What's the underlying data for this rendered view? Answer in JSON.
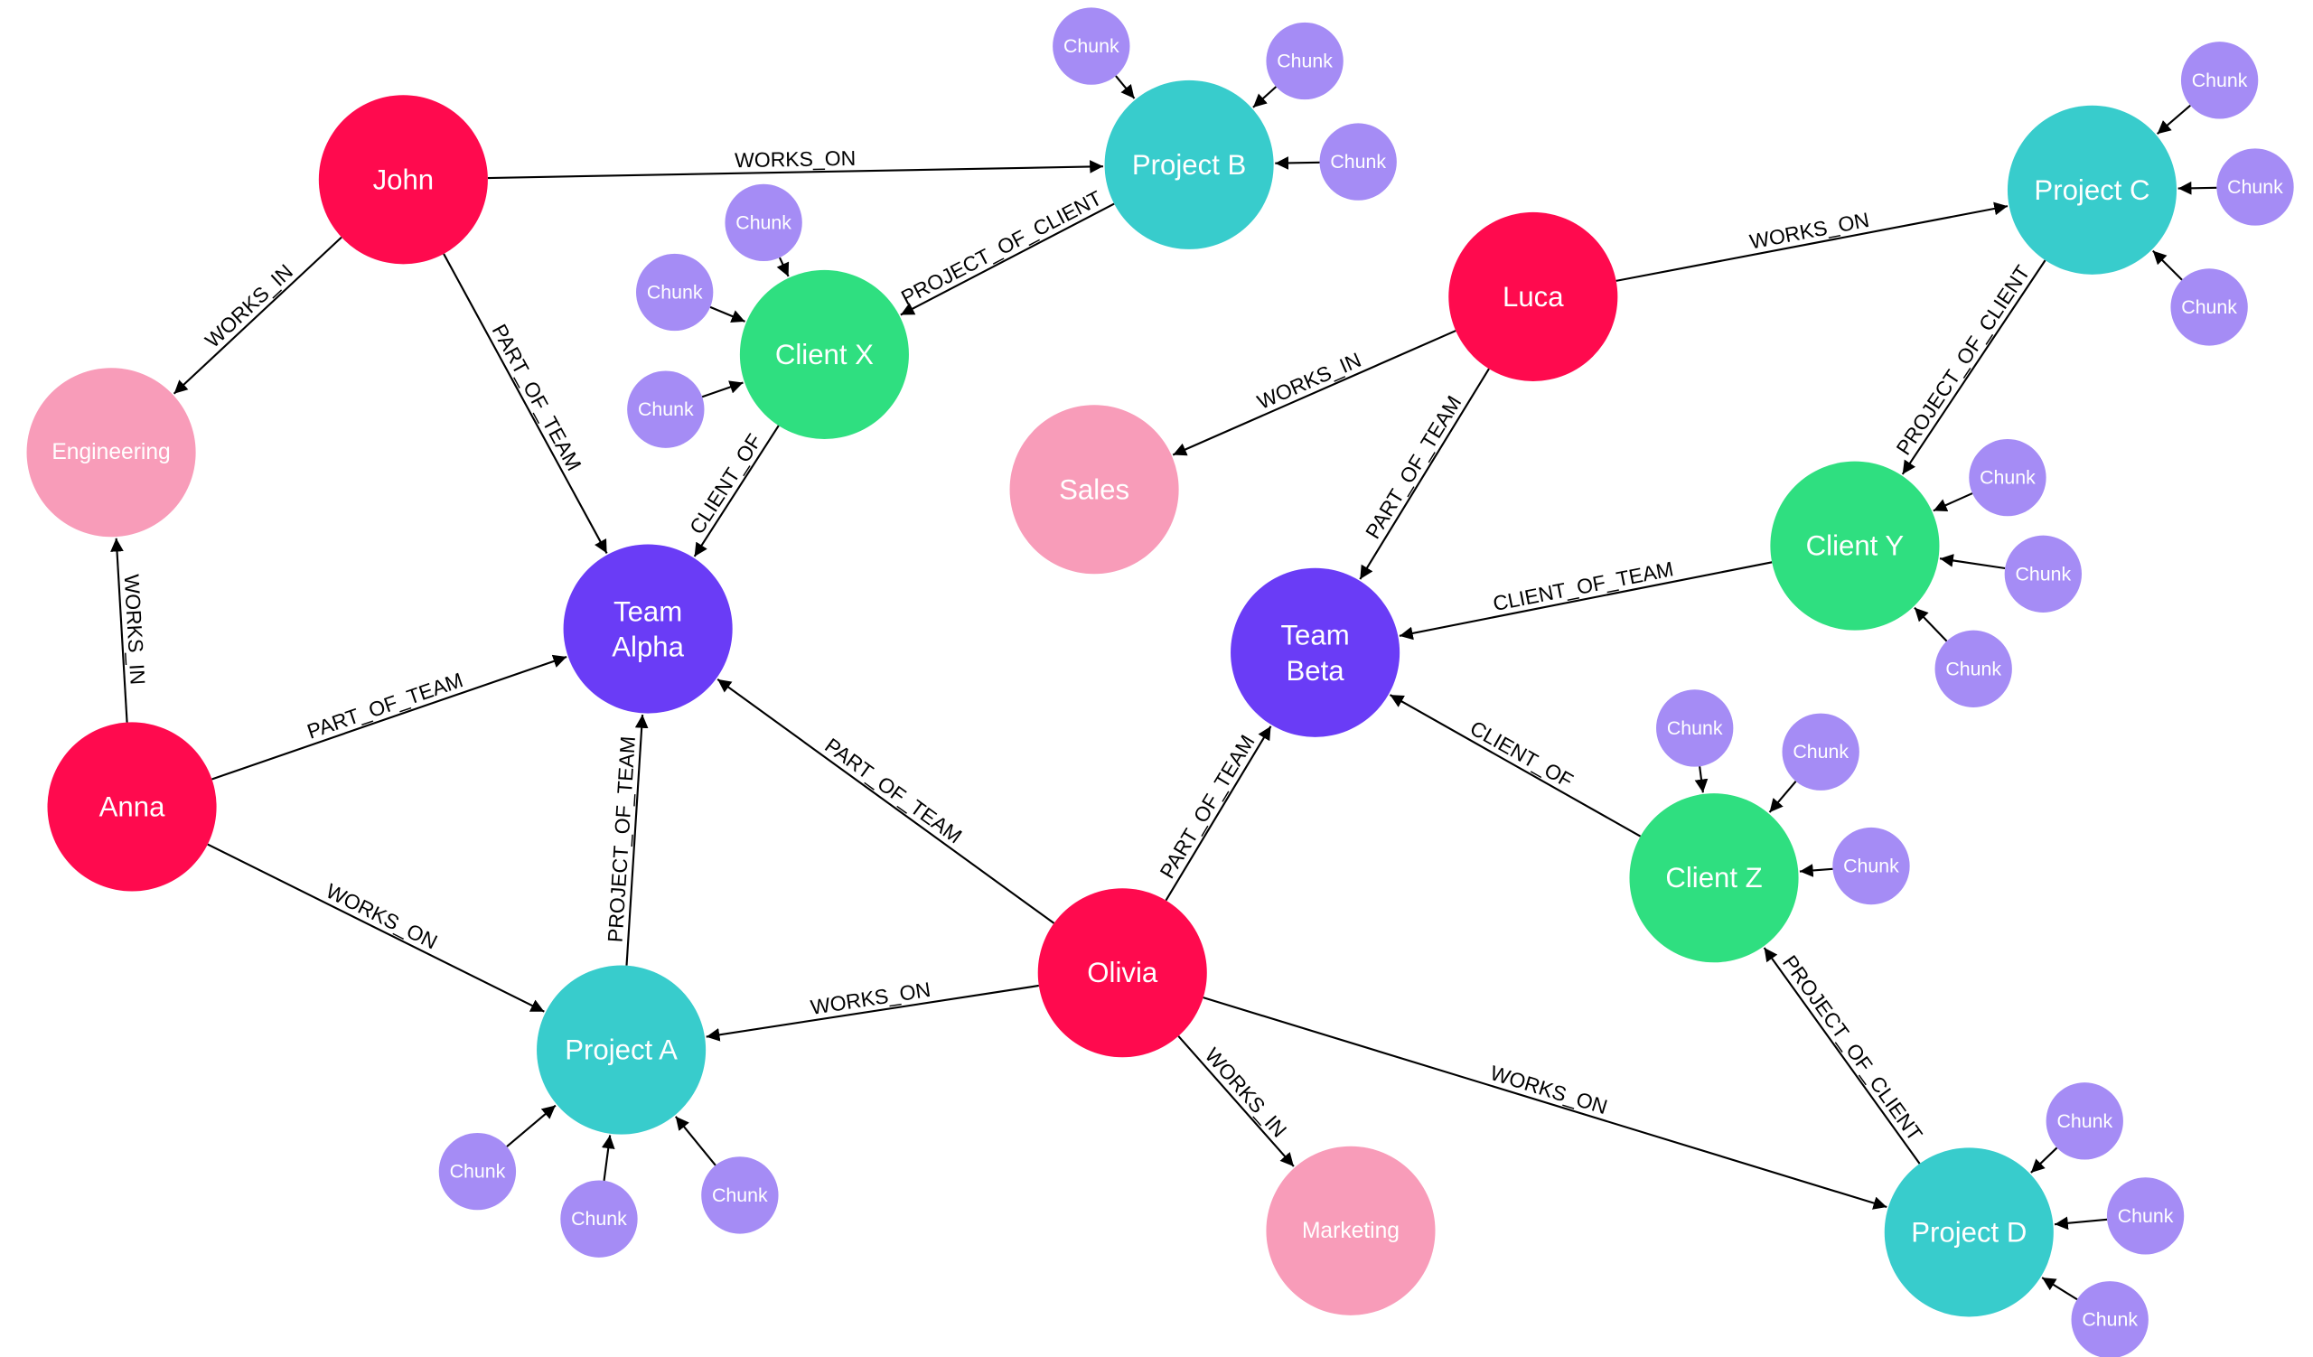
{
  "colors": {
    "Person": "#FF0A4E",
    "Department": "#F89CB9",
    "Team": "#6A3CF6",
    "Project": "#38CCCC",
    "Client": "#2FDF80",
    "Chunk": "#A58CF5",
    "edge": "#000000"
  },
  "nodes": [
    {
      "id": "john",
      "label": "John",
      "type": "Person"
    },
    {
      "id": "anna",
      "label": "Anna",
      "type": "Person"
    },
    {
      "id": "olivia",
      "label": "Olivia",
      "type": "Person"
    },
    {
      "id": "luca",
      "label": "Luca",
      "type": "Person"
    },
    {
      "id": "engineering",
      "label": "Engineering",
      "type": "Department"
    },
    {
      "id": "sales",
      "label": "Sales",
      "type": "Department"
    },
    {
      "id": "marketing",
      "label": "Marketing",
      "type": "Department"
    },
    {
      "id": "team_alpha",
      "label": "Team\nAlpha",
      "type": "Team"
    },
    {
      "id": "team_beta",
      "label": "Team\nBeta",
      "type": "Team"
    },
    {
      "id": "project_a",
      "label": "Project A",
      "type": "Project"
    },
    {
      "id": "project_b",
      "label": "Project B",
      "type": "Project"
    },
    {
      "id": "project_c",
      "label": "Project C",
      "type": "Project"
    },
    {
      "id": "project_d",
      "label": "Project D",
      "type": "Project"
    },
    {
      "id": "client_x",
      "label": "Client X",
      "type": "Client"
    },
    {
      "id": "client_y",
      "label": "Client Y",
      "type": "Client"
    },
    {
      "id": "client_z",
      "label": "Client Z",
      "type": "Client"
    },
    {
      "id": "pb1",
      "label": "Chunk",
      "type": "Chunk",
      "parent": "project_b"
    },
    {
      "id": "pb2",
      "label": "Chunk",
      "type": "Chunk",
      "parent": "project_b"
    },
    {
      "id": "pb3",
      "label": "Chunk",
      "type": "Chunk",
      "parent": "project_b"
    },
    {
      "id": "cx1",
      "label": "Chunk",
      "type": "Chunk",
      "parent": "client_x"
    },
    {
      "id": "cx2",
      "label": "Chunk",
      "type": "Chunk",
      "parent": "client_x"
    },
    {
      "id": "cx3",
      "label": "Chunk",
      "type": "Chunk",
      "parent": "client_x"
    },
    {
      "id": "pc1",
      "label": "Chunk",
      "type": "Chunk",
      "parent": "project_c"
    },
    {
      "id": "pc2",
      "label": "Chunk",
      "type": "Chunk",
      "parent": "project_c"
    },
    {
      "id": "pc3",
      "label": "Chunk",
      "type": "Chunk",
      "parent": "project_c"
    },
    {
      "id": "cy1",
      "label": "Chunk",
      "type": "Chunk",
      "parent": "client_y"
    },
    {
      "id": "cy2",
      "label": "Chunk",
      "type": "Chunk",
      "parent": "client_y"
    },
    {
      "id": "cy3",
      "label": "Chunk",
      "type": "Chunk",
      "parent": "client_y"
    },
    {
      "id": "cz1",
      "label": "Chunk",
      "type": "Chunk",
      "parent": "client_z"
    },
    {
      "id": "cz2",
      "label": "Chunk",
      "type": "Chunk",
      "parent": "client_z"
    },
    {
      "id": "cz3",
      "label": "Chunk",
      "type": "Chunk",
      "parent": "client_z"
    },
    {
      "id": "pa1",
      "label": "Chunk",
      "type": "Chunk",
      "parent": "project_a"
    },
    {
      "id": "pa2",
      "label": "Chunk",
      "type": "Chunk",
      "parent": "project_a"
    },
    {
      "id": "pa3",
      "label": "Chunk",
      "type": "Chunk",
      "parent": "project_a"
    },
    {
      "id": "pd1",
      "label": "Chunk",
      "type": "Chunk",
      "parent": "project_d"
    },
    {
      "id": "pd2",
      "label": "Chunk",
      "type": "Chunk",
      "parent": "project_d"
    },
    {
      "id": "pd3",
      "label": "Chunk",
      "type": "Chunk",
      "parent": "project_d"
    }
  ],
  "edges": [
    {
      "source": "john",
      "target": "project_b",
      "label": "WORKS_ON"
    },
    {
      "source": "john",
      "target": "engineering",
      "label": "WORKS_IN"
    },
    {
      "source": "john",
      "target": "team_alpha",
      "label": "PART_OF_TEAM"
    },
    {
      "source": "project_b",
      "target": "client_x",
      "label": "PROJECT_OF_CLIENT"
    },
    {
      "source": "client_x",
      "target": "team_alpha",
      "label": "CLIENT_OF"
    },
    {
      "source": "anna",
      "target": "engineering",
      "label": "WORKS_IN"
    },
    {
      "source": "anna",
      "target": "team_alpha",
      "label": "PART_OF_TEAM"
    },
    {
      "source": "anna",
      "target": "project_a",
      "label": "WORKS_ON"
    },
    {
      "source": "project_a",
      "target": "team_alpha",
      "label": "PROJECT_OF_TEAM"
    },
    {
      "source": "olivia",
      "target": "team_alpha",
      "label": "PART_OF_TEAM"
    },
    {
      "source": "olivia",
      "target": "project_a",
      "label": "WORKS_ON"
    },
    {
      "source": "olivia",
      "target": "team_beta",
      "label": "PART_OF_TEAM"
    },
    {
      "source": "olivia",
      "target": "marketing",
      "label": "WORKS_IN"
    },
    {
      "source": "olivia",
      "target": "project_d",
      "label": "WORKS_ON"
    },
    {
      "source": "luca",
      "target": "project_c",
      "label": "WORKS_ON"
    },
    {
      "source": "luca",
      "target": "sales",
      "label": "WORKS_IN"
    },
    {
      "source": "luca",
      "target": "team_beta",
      "label": "PART_OF_TEAM"
    },
    {
      "source": "project_c",
      "target": "client_y",
      "label": "PROJECT_OF_CLIENT"
    },
    {
      "source": "client_y",
      "target": "team_beta",
      "label": "CLIENT_OF_TEAM"
    },
    {
      "source": "client_z",
      "target": "team_beta",
      "label": "CLIENT_OF"
    },
    {
      "source": "project_d",
      "target": "client_z",
      "label": "PROJECT_OF_CLIENT"
    }
  ]
}
